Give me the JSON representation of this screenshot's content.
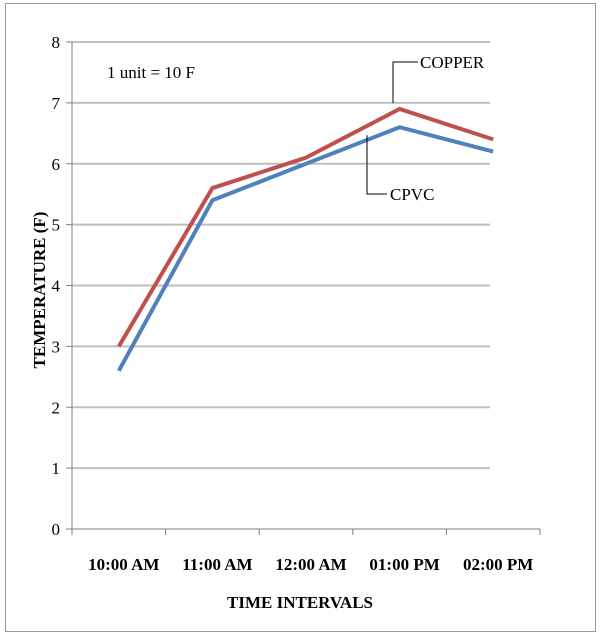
{
  "chart_data": {
    "type": "line",
    "title": "",
    "xlabel": "TIME INTERVALS",
    "ylabel": "TEMPERATURE (F)",
    "categories": [
      "10:00 AM",
      "11:00 AM",
      "12:00 AM",
      "01:00 PM",
      "02:00 PM"
    ],
    "ylim": [
      0,
      8
    ],
    "yticks": [
      0,
      1,
      2,
      3,
      4,
      5,
      6,
      7,
      8
    ],
    "grid": true,
    "annotations": [
      {
        "text": "1 unit = 10 F"
      }
    ],
    "series": [
      {
        "name": "COPPER",
        "color": "#c0504d",
        "values": [
          3.0,
          5.6,
          6.1,
          6.9,
          6.4
        ]
      },
      {
        "name": "CPVC",
        "color": "#4f81bd",
        "values": [
          2.6,
          5.4,
          6.0,
          6.6,
          6.2
        ]
      }
    ]
  }
}
